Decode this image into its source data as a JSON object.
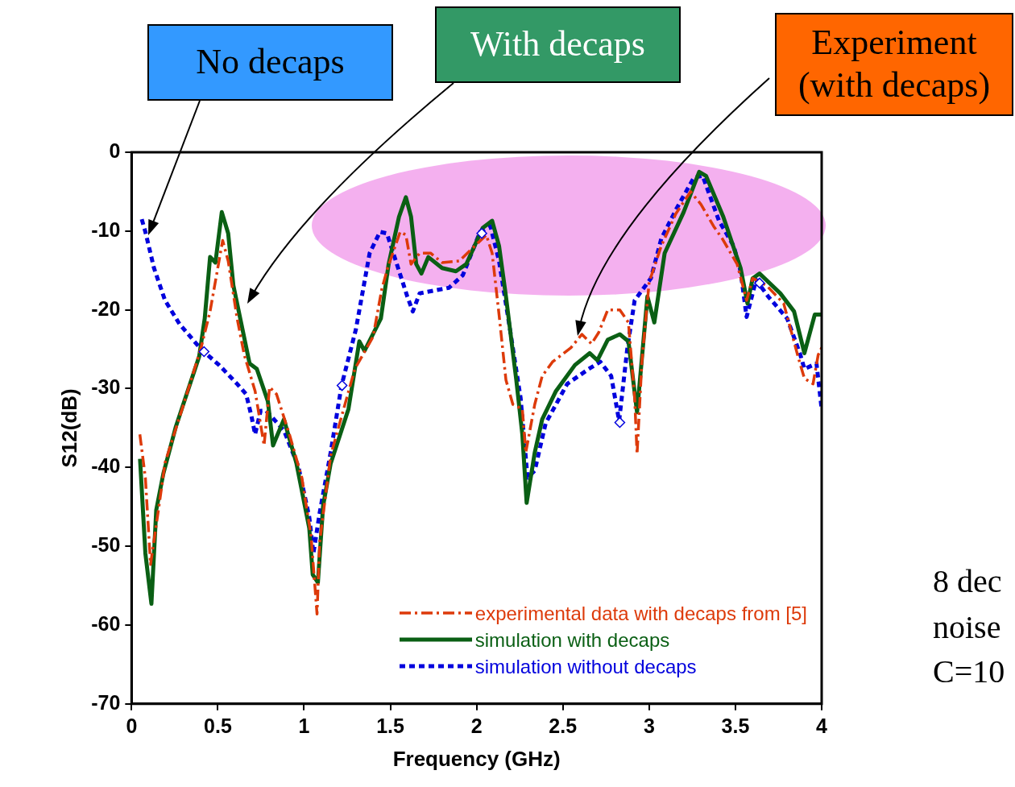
{
  "chart_data": {
    "type": "line",
    "xlabel": "Frequency (GHz)",
    "ylabel": "S12(dB)",
    "xlim": [
      0,
      4
    ],
    "ylim": [
      -70,
      0
    ],
    "xticks": [
      0,
      0.5,
      1,
      1.5,
      2,
      2.5,
      3,
      3.5,
      4
    ],
    "yticks": [
      -70,
      -60,
      -50,
      -40,
      -30,
      -20,
      -10,
      0
    ],
    "grid": false,
    "legend": "bottom right",
    "marker": "none",
    "series": [
      {
        "name": "experimental data with decaps from [5]",
        "color": "#dd3a0a",
        "line_style": "dashed",
        "x": [
          0.048,
          0.08,
          0.11,
          0.153,
          0.194,
          0.3,
          0.403,
          0.455,
          0.528,
          0.56,
          0.612,
          0.653,
          0.716,
          0.768,
          0.8,
          0.84,
          0.915,
          0.987,
          1.04,
          1.075,
          1.09,
          1.154,
          1.294,
          1.4,
          1.45,
          1.484,
          1.557,
          1.59,
          1.62,
          1.67,
          1.733,
          1.8,
          1.9,
          1.98,
          2.056,
          2.09,
          2.13,
          2.17,
          2.21,
          2.265,
          2.285,
          2.337,
          2.38,
          2.44,
          2.547,
          2.61,
          2.666,
          2.707,
          2.76,
          2.83,
          2.88,
          2.916,
          2.93,
          2.958,
          3.0,
          3.07,
          3.155,
          3.24,
          3.3,
          3.374,
          3.425,
          3.51,
          3.565,
          3.6,
          3.68,
          3.78,
          3.865,
          3.9,
          3.95,
          3.98,
          4.0
        ],
        "values": [
          -35.8,
          -41.3,
          -52.3,
          -45.8,
          -39.4,
          -32.1,
          -24.8,
          -20.2,
          -11.2,
          -13.8,
          -21.1,
          -25.7,
          -30.3,
          -37.2,
          -29.8,
          -30.7,
          -35.8,
          -41.3,
          -48.6,
          -58.6,
          -49.5,
          -38.5,
          -27.5,
          -23.4,
          -17.4,
          -14.7,
          -10.1,
          -10.5,
          -14.2,
          -12.8,
          -12.8,
          -14,
          -13.8,
          -12.1,
          -10.5,
          -12.8,
          -20.6,
          -28.9,
          -32,
          -32.6,
          -38.1,
          -32,
          -28.4,
          -26.6,
          -24.8,
          -23.1,
          -24.3,
          -22.9,
          -20,
          -20,
          -21.6,
          -31.2,
          -38.3,
          -26.6,
          -16.5,
          -11.9,
          -7.8,
          -5,
          -6.6,
          -9.4,
          -11,
          -14.2,
          -18.8,
          -16,
          -16.9,
          -19.2,
          -26.1,
          -28.7,
          -29.4,
          -25.7,
          -24.8
        ]
      },
      {
        "name": "simulation with decaps",
        "color": "#0a5f14",
        "line_style": "solid",
        "x": [
          0.049,
          0.08,
          0.115,
          0.143,
          0.184,
          0.257,
          0.392,
          0.424,
          0.455,
          0.486,
          0.523,
          0.56,
          0.59,
          0.684,
          0.726,
          0.79,
          0.82,
          0.883,
          0.955,
          1.03,
          1.05,
          1.08,
          1.11,
          1.154,
          1.257,
          1.32,
          1.35,
          1.445,
          1.49,
          1.55,
          1.59,
          1.62,
          1.65,
          1.68,
          1.72,
          1.8,
          1.88,
          1.94,
          2.035,
          2.09,
          2.13,
          2.17,
          2.23,
          2.265,
          2.29,
          2.337,
          2.38,
          2.46,
          2.57,
          2.655,
          2.7,
          2.76,
          2.83,
          2.88,
          2.93,
          2.99,
          3.03,
          3.09,
          3.2,
          3.29,
          3.33,
          3.43,
          3.53,
          3.57,
          3.6,
          3.64,
          3.76,
          3.84,
          3.9,
          3.96,
          4.0
        ],
        "values": [
          -38.9,
          -50.9,
          -57.3,
          -45.4,
          -40.8,
          -34.8,
          -25.9,
          -21.1,
          -13.3,
          -14,
          -7.6,
          -10.3,
          -16.9,
          -26.8,
          -27.5,
          -31.6,
          -37.2,
          -33.9,
          -39.4,
          -47.7,
          -53.6,
          -54.6,
          -44.9,
          -39.5,
          -32.6,
          -24,
          -25.2,
          -21.1,
          -14.2,
          -8.2,
          -5.7,
          -8.2,
          -14.2,
          -15.4,
          -13.3,
          -14.7,
          -15.1,
          -14.2,
          -9.6,
          -8.7,
          -11.9,
          -18.3,
          -28.9,
          -35.8,
          -44.5,
          -38.1,
          -33.9,
          -30.3,
          -27,
          -25.5,
          -26.4,
          -23.8,
          -23.1,
          -24,
          -33,
          -18.3,
          -21.6,
          -12.8,
          -7.6,
          -2.5,
          -3,
          -8.2,
          -14.7,
          -19.2,
          -16,
          -15.4,
          -17.9,
          -20.2,
          -25.5,
          -20.6,
          -20.6
        ]
      },
      {
        "name": "simulation without decaps",
        "color": "#0000dd",
        "line_style": "dotted",
        "x": [
          0.059,
          0.08,
          0.13,
          0.194,
          0.278,
          0.403,
          0.507,
          0.612,
          0.664,
          0.695,
          0.716,
          0.748,
          0.78,
          0.883,
          0.967,
          1.03,
          1.054,
          1.09,
          1.154,
          1.217,
          1.3,
          1.38,
          1.44,
          1.48,
          1.545,
          1.598,
          1.63,
          1.67,
          1.84,
          1.92,
          2.02,
          2.08,
          2.13,
          2.19,
          2.255,
          2.295,
          2.337,
          2.4,
          2.525,
          2.65,
          2.717,
          2.78,
          2.826,
          2.874,
          2.916,
          3.01,
          3.07,
          3.155,
          3.26,
          3.31,
          3.405,
          3.49,
          3.53,
          3.565,
          3.62,
          3.69,
          3.8,
          3.875,
          3.9,
          3.97,
          4.0
        ],
        "values": [
          -8.5,
          -10.1,
          -14.7,
          -18.8,
          -21.8,
          -25,
          -27,
          -29.4,
          -30.7,
          -33.5,
          -35.8,
          -32.8,
          -32.8,
          -35.3,
          -39.9,
          -46.3,
          -50.9,
          -45.8,
          -38.1,
          -29.6,
          -22.5,
          -12.8,
          -10.1,
          -10.3,
          -14.7,
          -18.3,
          -20.2,
          -17.9,
          -17.2,
          -15.6,
          -10.1,
          -9.4,
          -13.8,
          -22,
          -31.2,
          -41.3,
          -40.4,
          -34.4,
          -29.4,
          -27.5,
          -26.6,
          -28.4,
          -34.1,
          -24.8,
          -18.8,
          -16,
          -11,
          -7.3,
          -3.2,
          -3,
          -8.7,
          -11.9,
          -15.1,
          -20.9,
          -16.2,
          -18.3,
          -21.1,
          -25.6,
          -27.5,
          -26.8,
          -32.6
        ]
      },
      {
        "type": "scatter",
        "color": "#0000dd",
        "marker": "diamond",
        "x": [
          0.42,
          1.22,
          2.03,
          2.83,
          3.64
        ],
        "values": [
          -25.3,
          -29.6,
          -10.3,
          -34.3,
          -16.6
        ]
      }
    ],
    "annotations": [
      "No decaps",
      "With decaps",
      "Experiment (with decaps)",
      "8 dec",
      "noise",
      "C=10"
    ]
  }
}
